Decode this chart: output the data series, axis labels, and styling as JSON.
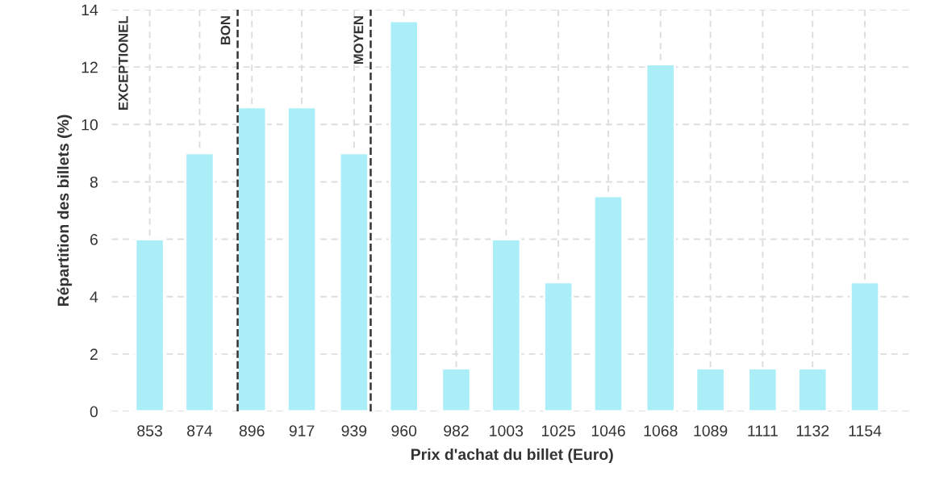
{
  "chart_data": {
    "type": "bar",
    "xlabel": "Prix d'achat du billet (Euro)",
    "ylabel": "Répartition des billets (%)",
    "x": [
      853,
      874,
      896,
      917,
      939,
      960,
      982,
      1003,
      1025,
      1046,
      1068,
      1089,
      1111,
      1132,
      1154
    ],
    "values": [
      6,
      9,
      10.6,
      10.6,
      9,
      13.6,
      1.5,
      6,
      4.5,
      7.5,
      12.1,
      1.5,
      1.5,
      1.5,
      4.5
    ],
    "color": "#aaeef8",
    "xlim": [
      837,
      1174
    ],
    "xticks": [
      853,
      874,
      896,
      917,
      939,
      960,
      982,
      1003,
      1025,
      1046,
      1068,
      1089,
      1111,
      1132,
      1154
    ],
    "ylim": [
      0,
      14
    ],
    "yticks": [
      0,
      2,
      4,
      6,
      8,
      10,
      12,
      14
    ],
    "ref_lines": [
      {
        "axis": "x",
        "value": 890,
        "label": "BON",
        "color": "#333333",
        "line_style": "dashed"
      },
      {
        "axis": "x",
        "value": 946,
        "label": "MOYEN",
        "color": "#333333",
        "line_style": "dashed"
      }
    ],
    "annotations": [
      "EXCEPTIONEL"
    ],
    "grid": true
  }
}
